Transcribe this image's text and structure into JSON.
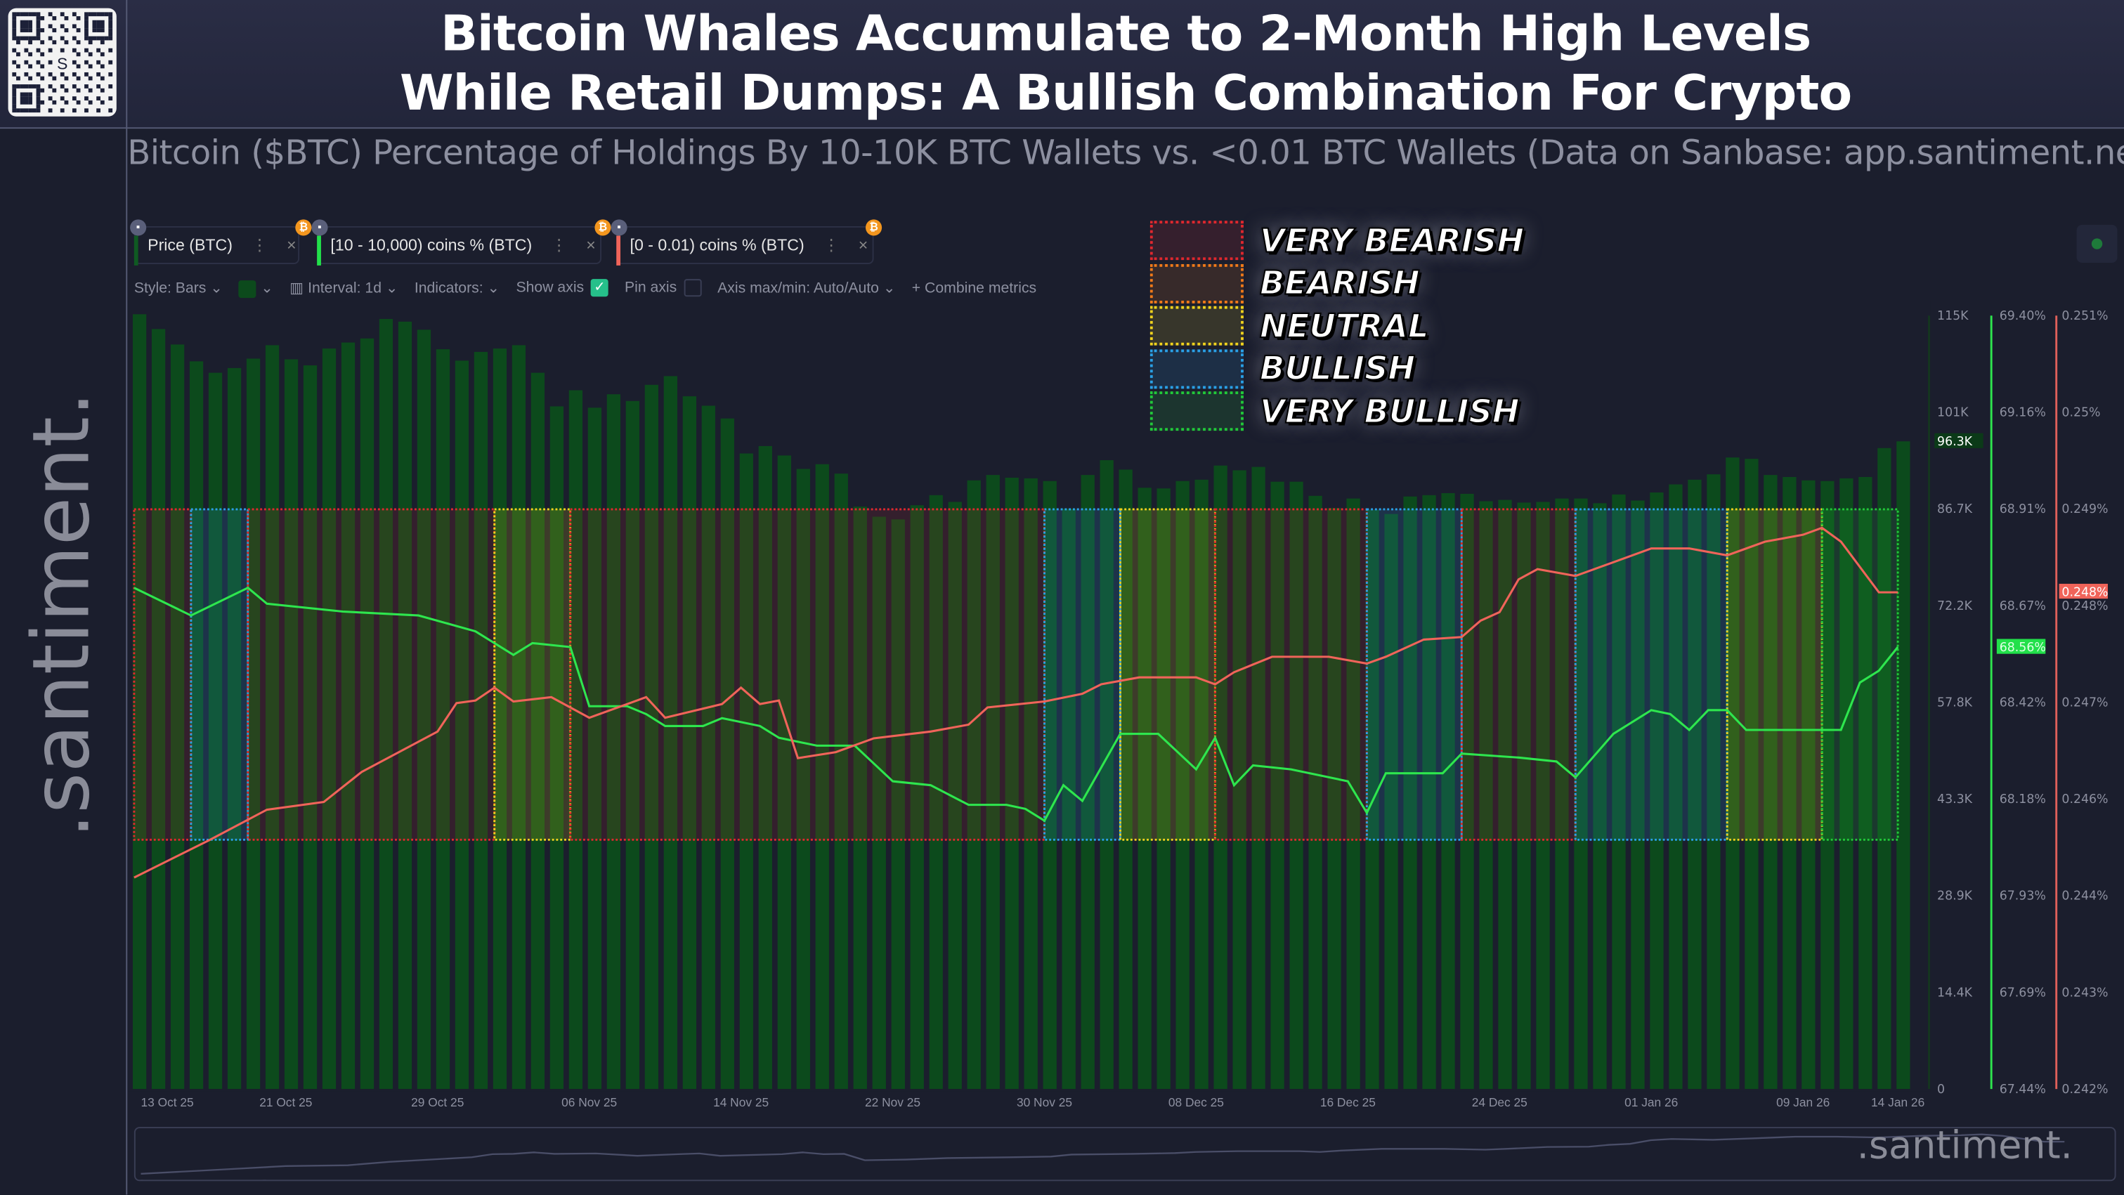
{
  "header": {
    "title_line1": "Bitcoin Whales Accumulate to 2-Month High Levels",
    "title_line2": "While Retail Dumps: A Bullish Combination For Crypto",
    "subtitle": "Bitcoin ($BTC) Percentage of Holdings By 10-10K BTC Wallets vs. <0.01 BTC Wallets (Data on Sanbase: app.santiment.net)",
    "watermark": ".santiment."
  },
  "metrics": [
    {
      "label": "Price (BTC)",
      "color": "#0f5a22"
    },
    {
      "label": "[10 - 10,000) coins % (BTC)",
      "color": "#22e04a"
    },
    {
      "label": "[0 - 0.01) coins % (BTC)",
      "color": "#f0645a"
    }
  ],
  "toolbar": {
    "style": "Style: Bars",
    "interval": "Interval: 1d",
    "indicators": "Indicators:",
    "show_axis": "Show axis",
    "show_axis_checked": true,
    "pin_axis": "Pin axis",
    "pin_axis_checked": false,
    "axis_maxmin": "Axis max/min: Auto/Auto",
    "combine": "+  Combine metrics"
  },
  "legend": [
    {
      "label": "VERY BEARISH",
      "color": "#e0282e"
    },
    {
      "label": "BEARISH",
      "color": "#f07a1a"
    },
    {
      "label": "NEUTRAL",
      "color": "#f0d21e"
    },
    {
      "label": "BULLISH",
      "color": "#2aa0e6"
    },
    {
      "label": "VERY BULLISH",
      "color": "#22c83a"
    }
  ],
  "navigator": {
    "watermark": ".santiment."
  },
  "chart_data": {
    "type": "bar+line",
    "x_tick_labels": [
      "13 Oct 25",
      "21 Oct 25",
      "29 Oct 25",
      "06 Nov 25",
      "14 Nov 25",
      "22 Nov 25",
      "30 Nov 25",
      "08 Dec 25",
      "16 Dec 25",
      "24 Dec 25",
      "01 Jan 26",
      "09 Jan 26",
      "14 Jan 26"
    ],
    "x": [
      "2025-10-13",
      "2025-10-14",
      "2025-10-15",
      "2025-10-16",
      "2025-10-17",
      "2025-10-18",
      "2025-10-19",
      "2025-10-20",
      "2025-10-21",
      "2025-10-22",
      "2025-10-23",
      "2025-10-24",
      "2025-10-25",
      "2025-10-26",
      "2025-10-27",
      "2025-10-28",
      "2025-10-29",
      "2025-10-30",
      "2025-10-31",
      "2025-11-01",
      "2025-11-02",
      "2025-11-03",
      "2025-11-04",
      "2025-11-05",
      "2025-11-06",
      "2025-11-07",
      "2025-11-08",
      "2025-11-09",
      "2025-11-10",
      "2025-11-11",
      "2025-11-12",
      "2025-11-13",
      "2025-11-14",
      "2025-11-15",
      "2025-11-16",
      "2025-11-17",
      "2025-11-18",
      "2025-11-19",
      "2025-11-20",
      "2025-11-21",
      "2025-11-22",
      "2025-11-23",
      "2025-11-24",
      "2025-11-25",
      "2025-11-26",
      "2025-11-27",
      "2025-11-28",
      "2025-11-29",
      "2025-11-30",
      "2025-12-01",
      "2025-12-02",
      "2025-12-03",
      "2025-12-04",
      "2025-12-05",
      "2025-12-06",
      "2025-12-07",
      "2025-12-08",
      "2025-12-09",
      "2025-12-10",
      "2025-12-11",
      "2025-12-12",
      "2025-12-13",
      "2025-12-14",
      "2025-12-15",
      "2025-12-16",
      "2025-12-17",
      "2025-12-18",
      "2025-12-19",
      "2025-12-20",
      "2025-12-21",
      "2025-12-22",
      "2025-12-23",
      "2025-12-24",
      "2025-12-25",
      "2025-12-26",
      "2025-12-27",
      "2025-12-28",
      "2025-12-29",
      "2025-12-30",
      "2025-12-31",
      "2026-01-01",
      "2026-01-02",
      "2026-01-03",
      "2026-01-04",
      "2026-01-05",
      "2026-01-06",
      "2026-01-07",
      "2026-01-08",
      "2026-01-09",
      "2026-01-10",
      "2026-01-11",
      "2026-01-12",
      "2026-01-13",
      "2026-01-14"
    ],
    "price": {
      "name": "Price (BTC)",
      "type": "bar",
      "color": "#0c4a1c",
      "unit": "K USD",
      "values": [
        115.2,
        113,
        110.7,
        108.2,
        106.5,
        107.2,
        108.6,
        110.6,
        108.5,
        107.6,
        110.1,
        111,
        111.6,
        114.5,
        114.1,
        112.9,
        110,
        108.3,
        109.6,
        110.1,
        110.6,
        106.5,
        101.5,
        103.9,
        101.3,
        103.3,
        102.3,
        104.7,
        106,
        103,
        101.6,
        99.7,
        94.5,
        95.6,
        94.2,
        92.2,
        92.9,
        91.5,
        86.6,
        85.1,
        84.7,
        86.8,
        88.3,
        87.3,
        90.5,
        91.3,
        90.9,
        90.8,
        90.4,
        86.3,
        91.3,
        93.5,
        92.1,
        89.4,
        89.3,
        90.4,
        90.6,
        92.7,
        92,
        92.5,
        90.3,
        90.3,
        88.2,
        86.4,
        87.8,
        86.1,
        85.5,
        88.1,
        88.3,
        88.6,
        88.5,
        87.4,
        87.6,
        87.2,
        87.3,
        87.8,
        87.8,
        87.1,
        88.4,
        87.5,
        88.7,
        89.9,
        90.6,
        91.4,
        93.9,
        93.7,
        91.3,
        91,
        90.5,
        90.4,
        90.8,
        91,
        95.3,
        96.3
      ],
      "axis_ticks": [
        "115K",
        "101K",
        "86.7K",
        "72.2K",
        "57.8K",
        "43.3K",
        "28.9K",
        "14.4K",
        "0"
      ],
      "ylim": [
        0,
        115
      ],
      "last_label": "96.3K"
    },
    "whales": {
      "name": "[10 - 10,000) coins % (BTC)",
      "type": "line",
      "color": "#2ee64e",
      "unit": "%",
      "points": [
        [
          "2025-10-13",
          68.71
        ],
        [
          "2025-10-16",
          68.64
        ],
        [
          "2025-10-19",
          68.71
        ],
        [
          "2025-10-20",
          68.67
        ],
        [
          "2025-10-24",
          68.65
        ],
        [
          "2025-10-28",
          68.64
        ],
        [
          "2025-10-31",
          68.6
        ],
        [
          "2025-11-02",
          68.54
        ],
        [
          "2025-11-03",
          68.57
        ],
        [
          "2025-11-05",
          68.56
        ],
        [
          "2025-11-06",
          68.41
        ],
        [
          "2025-11-08",
          68.41
        ],
        [
          "2025-11-09",
          68.39
        ],
        [
          "2025-11-10",
          68.36
        ],
        [
          "2025-11-12",
          68.36
        ],
        [
          "2025-11-13",
          68.38
        ],
        [
          "2025-11-15",
          68.36
        ],
        [
          "2025-11-16",
          68.33
        ],
        [
          "2025-11-18",
          68.31
        ],
        [
          "2025-11-20",
          68.31
        ],
        [
          "2025-11-22",
          68.22
        ],
        [
          "2025-11-24",
          68.21
        ],
        [
          "2025-11-26",
          68.16
        ],
        [
          "2025-11-28",
          68.16
        ],
        [
          "2025-11-29",
          68.15
        ],
        [
          "2025-11-30",
          68.12
        ],
        [
          "2025-12-01",
          68.21
        ],
        [
          "2025-12-02",
          68.17
        ],
        [
          "2025-12-04",
          68.34
        ],
        [
          "2025-12-06",
          68.34
        ],
        [
          "2025-12-08",
          68.25
        ],
        [
          "2025-12-09",
          68.33
        ],
        [
          "2025-12-10",
          68.21
        ],
        [
          "2025-12-11",
          68.26
        ],
        [
          "2025-12-13",
          68.25
        ],
        [
          "2025-12-16",
          68.22
        ],
        [
          "2025-12-17",
          68.14
        ],
        [
          "2025-12-18",
          68.24
        ],
        [
          "2025-12-21",
          68.24
        ],
        [
          "2025-12-22",
          68.29
        ],
        [
          "2025-12-25",
          68.28
        ],
        [
          "2025-12-27",
          68.27
        ],
        [
          "2025-12-28",
          68.23
        ],
        [
          "2025-12-30",
          68.34
        ],
        [
          "2026-01-01",
          68.4
        ],
        [
          "2026-01-02",
          68.39
        ],
        [
          "2026-01-03",
          68.35
        ],
        [
          "2026-01-04",
          68.4
        ],
        [
          "2026-01-05",
          68.4
        ],
        [
          "2026-01-06",
          68.35
        ],
        [
          "2026-01-09",
          68.35
        ],
        [
          "2026-01-11",
          68.35
        ],
        [
          "2026-01-12",
          68.47
        ],
        [
          "2026-01-13",
          68.5
        ],
        [
          "2026-01-14",
          68.56
        ]
      ],
      "axis_ticks": [
        "69.40%",
        "69.16%",
        "68.91%",
        "68.67%",
        "68.42%",
        "68.18%",
        "67.93%",
        "67.69%",
        "67.44%"
      ],
      "ylim": [
        67.44,
        69.4
      ],
      "last_label": "68.56%"
    },
    "retail": {
      "name": "[0 - 0.01) coins % (BTC)",
      "type": "line",
      "color": "#f0645a",
      "unit": "%",
      "points": [
        [
          "2025-10-13",
          0.24446
        ],
        [
          "2025-10-17",
          0.2449
        ],
        [
          "2025-10-20",
          0.24525
        ],
        [
          "2025-10-23",
          0.24534
        ],
        [
          "2025-10-25",
          0.24569
        ],
        [
          "2025-10-29",
          0.24616
        ],
        [
          "2025-10-30",
          0.24649
        ],
        [
          "2025-10-31",
          0.24652
        ],
        [
          "2025-11-01",
          0.24667
        ],
        [
          "2025-11-02",
          0.24651
        ],
        [
          "2025-11-04",
          0.24656
        ],
        [
          "2025-11-06",
          0.24632
        ],
        [
          "2025-11-08",
          0.24648
        ],
        [
          "2025-11-09",
          0.24656
        ],
        [
          "2025-11-10",
          0.24632
        ],
        [
          "2025-11-13",
          0.24648
        ],
        [
          "2025-11-14",
          0.24667
        ],
        [
          "2025-11-15",
          0.24648
        ],
        [
          "2025-11-16",
          0.24652
        ],
        [
          "2025-11-17",
          0.24585
        ],
        [
          "2025-11-19",
          0.24592
        ],
        [
          "2025-11-21",
          0.24608
        ],
        [
          "2025-11-24",
          0.24616
        ],
        [
          "2025-11-26",
          0.24624
        ],
        [
          "2025-11-27",
          0.24644
        ],
        [
          "2025-11-30",
          0.24651
        ],
        [
          "2025-12-02",
          0.2466
        ],
        [
          "2025-12-03",
          0.24671
        ],
        [
          "2025-12-05",
          0.24679
        ],
        [
          "2025-12-08",
          0.24679
        ],
        [
          "2025-12-09",
          0.24671
        ],
        [
          "2025-12-10",
          0.24685
        ],
        [
          "2025-12-12",
          0.24703
        ],
        [
          "2025-12-15",
          0.24703
        ],
        [
          "2025-12-17",
          0.24695
        ],
        [
          "2025-12-18",
          0.24703
        ],
        [
          "2025-12-20",
          0.24723
        ],
        [
          "2025-12-22",
          0.24726
        ],
        [
          "2025-12-23",
          0.24745
        ],
        [
          "2025-12-24",
          0.24755
        ],
        [
          "2025-12-25",
          0.24793
        ],
        [
          "2025-12-26",
          0.24805
        ],
        [
          "2025-12-28",
          0.24797
        ],
        [
          "2025-12-30",
          0.24813
        ],
        [
          "2026-01-01",
          0.24829
        ],
        [
          "2026-01-03",
          0.24829
        ],
        [
          "2026-01-05",
          0.24821
        ],
        [
          "2026-01-07",
          0.24837
        ],
        [
          "2026-01-09",
          0.24845
        ],
        [
          "2026-01-10",
          0.24853
        ],
        [
          "2026-01-11",
          0.24837
        ],
        [
          "2026-01-13",
          0.24778
        ],
        [
          "2026-01-14",
          0.24778
        ]
      ],
      "axis_ticks": [
        "0.251%",
        "0.25%",
        "0.249%",
        "0.248%",
        "0.247%",
        "0.246%",
        "0.244%",
        "0.243%",
        "0.242%"
      ],
      "ylim": [
        0.242,
        0.251
      ],
      "last_label": "0.248%"
    },
    "zones": [
      {
        "from": "2025-10-13",
        "to": "2025-10-16",
        "sentiment": "VERY BEARISH"
      },
      {
        "from": "2025-10-16",
        "to": "2025-10-19",
        "sentiment": "BULLISH"
      },
      {
        "from": "2025-10-19",
        "to": "2025-11-01",
        "sentiment": "VERY BEARISH"
      },
      {
        "from": "2025-11-01",
        "to": "2025-11-05",
        "sentiment": "NEUTRAL"
      },
      {
        "from": "2025-11-05",
        "to": "2025-11-30",
        "sentiment": "VERY BEARISH"
      },
      {
        "from": "2025-11-30",
        "to": "2025-12-04",
        "sentiment": "BULLISH"
      },
      {
        "from": "2025-12-04",
        "to": "2025-12-09",
        "sentiment": "NEUTRAL"
      },
      {
        "from": "2025-12-09",
        "to": "2025-12-17",
        "sentiment": "VERY BEARISH"
      },
      {
        "from": "2025-12-17",
        "to": "2025-12-22",
        "sentiment": "BULLISH"
      },
      {
        "from": "2025-12-22",
        "to": "2025-12-28",
        "sentiment": "VERY BEARISH"
      },
      {
        "from": "2025-12-28",
        "to": "2026-01-05",
        "sentiment": "BULLISH"
      },
      {
        "from": "2026-01-05",
        "to": "2026-01-10",
        "sentiment": "NEUTRAL"
      },
      {
        "from": "2026-01-10",
        "to": "2026-01-14",
        "sentiment": "VERY BULLISH"
      }
    ]
  }
}
